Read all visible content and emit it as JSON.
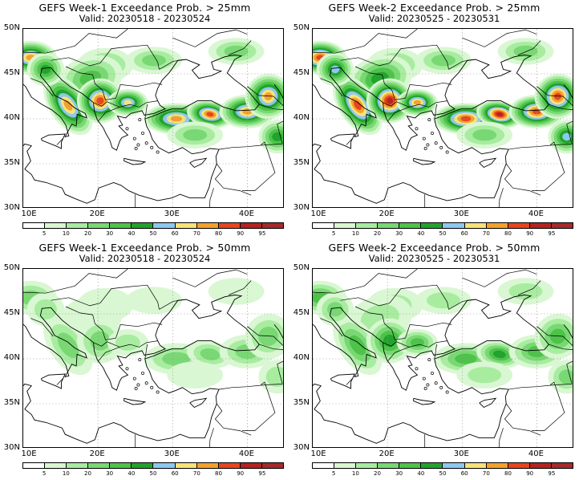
{
  "panels": [
    {
      "title": "GEFS Week-1 Exceedance Prob. > 25mm",
      "valid": "Valid: 20230518 - 20230524",
      "intensity": 1.0
    },
    {
      "title": "GEFS Week-2 Exceedance Prob. > 25mm",
      "valid": "Valid: 20230525 - 20230531",
      "intensity": 1.15
    },
    {
      "title": "GEFS Week-1 Exceedance Prob. > 50mm",
      "valid": "Valid: 20230518 - 20230524",
      "intensity": 0.35
    },
    {
      "title": "GEFS Week-2 Exceedance Prob. > 50mm",
      "valid": "Valid: 20230525 - 20230531",
      "intensity": 0.55
    }
  ],
  "lat_labels": [
    "50N",
    "45N",
    "40N",
    "35N",
    "30N"
  ],
  "lon_labels": [
    "10E",
    "20E",
    "30E",
    "40E"
  ],
  "colorbar": {
    "labels": [
      "5",
      "10",
      "20",
      "30",
      "40",
      "50",
      "60",
      "70",
      "80",
      "90",
      "95"
    ],
    "colors": [
      "#ffffff",
      "#d9f7d2",
      "#a8eca0",
      "#79d873",
      "#4dc34a",
      "#22a32c",
      "#8dc8ee",
      "#f8e27a",
      "#f3a12c",
      "#e8441f",
      "#b5231e",
      "#a52a2a"
    ]
  }
}
